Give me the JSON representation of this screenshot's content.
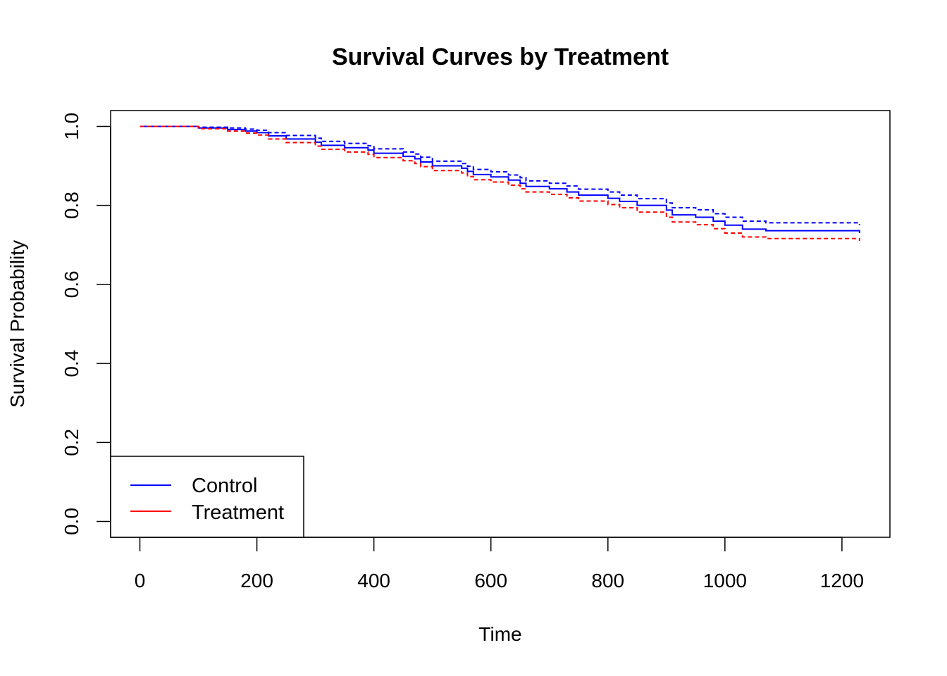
{
  "chart_data": {
    "type": "line",
    "title": "Survival Curves by Treatment",
    "xlabel": "Time",
    "ylabel": "Survival Probability",
    "xlim": [
      -50,
      1282
    ],
    "ylim": [
      -0.04,
      1.04
    ],
    "xticks": [
      "0",
      "200",
      "400",
      "600",
      "800",
      "1000",
      "1200"
    ],
    "yticks": [
      "0.0",
      "0.2",
      "0.4",
      "0.6",
      "0.8",
      "1.0"
    ],
    "grid": false,
    "legend_position": "bottom-left",
    "series": [
      {
        "name": "Control",
        "color": "#0000ff",
        "style": "solid",
        "x": [
          0,
          100,
          150,
          180,
          200,
          220,
          250,
          300,
          310,
          350,
          390,
          400,
          450,
          470,
          480,
          500,
          550,
          560,
          570,
          600,
          630,
          650,
          660,
          700,
          730,
          750,
          800,
          820,
          850,
          900,
          910,
          950,
          980,
          1000,
          1030,
          1070,
          1230
        ],
        "y": [
          1.0,
          0.996,
          0.992,
          0.988,
          0.984,
          0.976,
          0.968,
          0.96,
          0.952,
          0.946,
          0.94,
          0.932,
          0.924,
          0.918,
          0.91,
          0.9,
          0.894,
          0.886,
          0.878,
          0.872,
          0.864,
          0.856,
          0.848,
          0.842,
          0.834,
          0.826,
          0.818,
          0.81,
          0.8,
          0.788,
          0.776,
          0.77,
          0.76,
          0.75,
          0.74,
          0.736,
          0.73
        ]
      },
      {
        "name": "",
        "color": "#0000ff",
        "style": "dashed",
        "x": [
          0,
          100,
          150,
          180,
          200,
          220,
          250,
          300,
          310,
          350,
          390,
          400,
          450,
          470,
          480,
          500,
          550,
          560,
          570,
          600,
          630,
          650,
          660,
          700,
          730,
          750,
          800,
          820,
          850,
          900,
          910,
          950,
          980,
          1000,
          1030,
          1070,
          1230
        ],
        "y": [
          1.0,
          0.998,
          0.996,
          0.993,
          0.99,
          0.984,
          0.977,
          0.97,
          0.962,
          0.957,
          0.951,
          0.943,
          0.935,
          0.93,
          0.922,
          0.912,
          0.906,
          0.899,
          0.891,
          0.885,
          0.877,
          0.87,
          0.862,
          0.856,
          0.849,
          0.841,
          0.834,
          0.826,
          0.817,
          0.806,
          0.794,
          0.789,
          0.779,
          0.77,
          0.76,
          0.756,
          0.75
        ]
      },
      {
        "name": "Treatment",
        "color": "#ff0000",
        "style": "dashed",
        "x": [
          0,
          100,
          150,
          180,
          200,
          220,
          250,
          300,
          310,
          350,
          390,
          400,
          450,
          470,
          480,
          500,
          550,
          560,
          570,
          600,
          630,
          650,
          660,
          700,
          730,
          750,
          800,
          820,
          850,
          900,
          910,
          950,
          980,
          1000,
          1030,
          1070,
          1230
        ],
        "y": [
          1.0,
          0.994,
          0.988,
          0.983,
          0.978,
          0.968,
          0.959,
          0.95,
          0.942,
          0.935,
          0.929,
          0.921,
          0.913,
          0.906,
          0.898,
          0.888,
          0.882,
          0.873,
          0.865,
          0.859,
          0.851,
          0.842,
          0.834,
          0.828,
          0.819,
          0.811,
          0.802,
          0.794,
          0.783,
          0.77,
          0.758,
          0.751,
          0.741,
          0.73,
          0.72,
          0.716,
          0.71
        ]
      }
    ]
  }
}
